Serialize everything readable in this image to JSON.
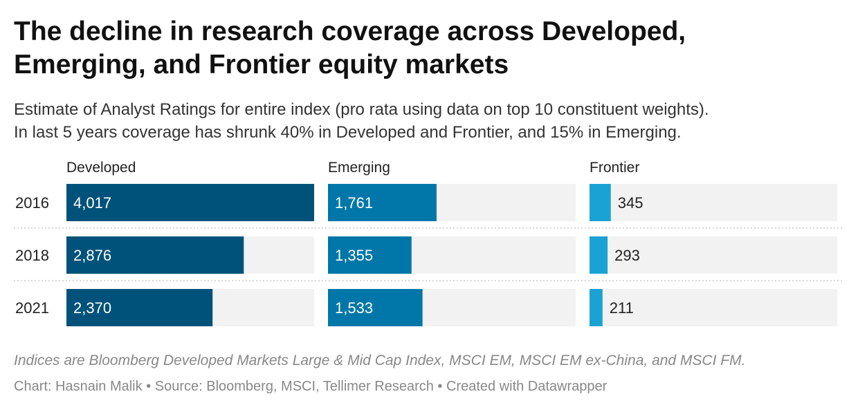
{
  "title_lines": [
    "The decline in research coverage across Developed,",
    "Emerging, and Frontier equity markets"
  ],
  "subtitle_lines": [
    "Estimate of Analyst Ratings for entire index (pro rata using data on top 10 constituent weights).",
    "In last 5 years coverage has shrunk 40% in Developed and Frontier, and 15% in Emerging."
  ],
  "note": "Indices are Bloomberg Developed Markets Large & Mid Cap Index, MSCI EM, MSCI EM ex-China, and MSCI FM.",
  "footer": "Chart: Hasnain Malik • Source: Bloomberg, MSCI, Tellimer Research • Created with Datawrapper",
  "chart_data": {
    "type": "bar",
    "orientation": "horizontal",
    "layout": "small-multiples",
    "categories": [
      "2016",
      "2018",
      "2021"
    ],
    "xlim": [
      0,
      4017
    ],
    "series": [
      {
        "name": "Developed",
        "values": [
          4017,
          2876,
          2370
        ],
        "labels": [
          "4,017",
          "2,876",
          "2,370"
        ],
        "color": "#00527a"
      },
      {
        "name": "Emerging",
        "values": [
          1761,
          1355,
          1533
        ],
        "labels": [
          "1,761",
          "1,355",
          "1,533"
        ],
        "color": "#0077a8"
      },
      {
        "name": "Frontier",
        "values": [
          345,
          293,
          211
        ],
        "labels": [
          "345",
          "293",
          "211"
        ],
        "color": "#1ba2d4"
      }
    ],
    "track_color": "#f2f2f2",
    "grid": false
  }
}
